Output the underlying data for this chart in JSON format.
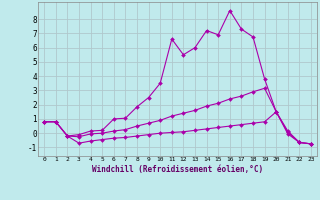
{
  "background_color": "#c0eaec",
  "grid_color": "#b0c8cc",
  "line_color": "#aa00aa",
  "xlabel": "Windchill (Refroidissement éolien,°C)",
  "xlim": [
    -0.5,
    23.5
  ],
  "ylim": [
    -1.6,
    9.2
  ],
  "xticks": [
    0,
    1,
    2,
    3,
    4,
    5,
    6,
    7,
    8,
    9,
    10,
    11,
    12,
    13,
    14,
    15,
    16,
    17,
    18,
    19,
    20,
    21,
    22,
    23
  ],
  "yticks": [
    -1,
    0,
    1,
    2,
    3,
    4,
    5,
    6,
    7,
    8
  ],
  "series": [
    {
      "x": [
        0,
        1,
        2,
        3,
        4,
        5,
        6,
        7,
        8,
        9,
        10,
        11,
        12,
        13,
        14,
        15,
        16,
        17,
        18,
        19,
        20,
        21,
        22,
        23
      ],
      "y": [
        0.8,
        0.8,
        -0.2,
        -0.1,
        0.15,
        0.2,
        1.0,
        1.05,
        1.85,
        2.5,
        3.5,
        6.6,
        5.5,
        6.0,
        7.2,
        6.9,
        8.6,
        7.3,
        6.75,
        3.8,
        1.5,
        0.15,
        -0.65,
        -0.75
      ]
    },
    {
      "x": [
        0,
        1,
        2,
        3,
        4,
        5,
        6,
        7,
        8,
        9,
        10,
        11,
        12,
        13,
        14,
        15,
        16,
        17,
        18,
        19,
        20,
        21,
        22,
        23
      ],
      "y": [
        0.8,
        0.8,
        -0.2,
        -0.25,
        -0.05,
        0.0,
        0.15,
        0.25,
        0.5,
        0.7,
        0.9,
        1.2,
        1.4,
        1.6,
        1.9,
        2.1,
        2.4,
        2.6,
        2.9,
        3.15,
        1.5,
        0.05,
        -0.65,
        -0.75
      ]
    },
    {
      "x": [
        0,
        1,
        2,
        3,
        4,
        5,
        6,
        7,
        8,
        9,
        10,
        11,
        12,
        13,
        14,
        15,
        16,
        17,
        18,
        19,
        20,
        21,
        22,
        23
      ],
      "y": [
        0.8,
        0.8,
        -0.2,
        -0.7,
        -0.55,
        -0.45,
        -0.35,
        -0.3,
        -0.2,
        -0.1,
        0.0,
        0.05,
        0.1,
        0.2,
        0.3,
        0.4,
        0.5,
        0.6,
        0.7,
        0.8,
        1.5,
        -0.05,
        -0.65,
        -0.75
      ]
    }
  ]
}
